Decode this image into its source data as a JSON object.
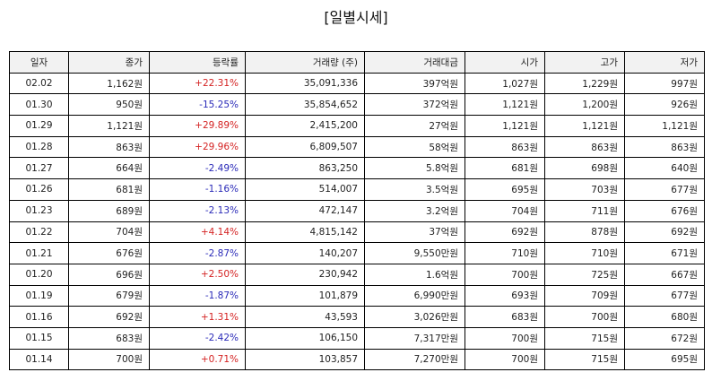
{
  "title": "[일별시세]",
  "columns": [
    "일자",
    "종가",
    "등락률",
    "거래량 (주)",
    "거래대금",
    "시가",
    "고가",
    "저가"
  ],
  "colors": {
    "up": "#d42222",
    "down": "#2a2ab8"
  },
  "rows": [
    {
      "date": "02.02",
      "close": "1,162원",
      "change": "+22.31%",
      "dir": "up",
      "volume": "35,091,336",
      "amount": "397억원",
      "open": "1,027원",
      "high": "1,229원",
      "low": "997원"
    },
    {
      "date": "01.30",
      "close": "950원",
      "change": "-15.25%",
      "dir": "down",
      "volume": "35,854,652",
      "amount": "372억원",
      "open": "1,121원",
      "high": "1,200원",
      "low": "926원"
    },
    {
      "date": "01.29",
      "close": "1,121원",
      "change": "+29.89%",
      "dir": "up",
      "volume": "2,415,200",
      "amount": "27억원",
      "open": "1,121원",
      "high": "1,121원",
      "low": "1,121원"
    },
    {
      "date": "01.28",
      "close": "863원",
      "change": "+29.96%",
      "dir": "up",
      "volume": "6,809,507",
      "amount": "58억원",
      "open": "863원",
      "high": "863원",
      "low": "863원"
    },
    {
      "date": "01.27",
      "close": "664원",
      "change": "-2.49%",
      "dir": "down",
      "volume": "863,250",
      "amount": "5.8억원",
      "open": "681원",
      "high": "698원",
      "low": "640원"
    },
    {
      "date": "01.26",
      "close": "681원",
      "change": "-1.16%",
      "dir": "down",
      "volume": "514,007",
      "amount": "3.5억원",
      "open": "695원",
      "high": "703원",
      "low": "677원"
    },
    {
      "date": "01.23",
      "close": "689원",
      "change": "-2.13%",
      "dir": "down",
      "volume": "472,147",
      "amount": "3.2억원",
      "open": "704원",
      "high": "711원",
      "low": "676원"
    },
    {
      "date": "01.22",
      "close": "704원",
      "change": "+4.14%",
      "dir": "up",
      "volume": "4,815,142",
      "amount": "37억원",
      "open": "692원",
      "high": "878원",
      "low": "692원"
    },
    {
      "date": "01.21",
      "close": "676원",
      "change": "-2.87%",
      "dir": "down",
      "volume": "140,207",
      "amount": "9,550만원",
      "open": "710원",
      "high": "710원",
      "low": "671원"
    },
    {
      "date": "01.20",
      "close": "696원",
      "change": "+2.50%",
      "dir": "up",
      "volume": "230,942",
      "amount": "1.6억원",
      "open": "700원",
      "high": "725원",
      "low": "667원"
    },
    {
      "date": "01.19",
      "close": "679원",
      "change": "-1.87%",
      "dir": "down",
      "volume": "101,879",
      "amount": "6,990만원",
      "open": "693원",
      "high": "709원",
      "low": "677원"
    },
    {
      "date": "01.16",
      "close": "692원",
      "change": "+1.31%",
      "dir": "up",
      "volume": "43,593",
      "amount": "3,026만원",
      "open": "683원",
      "high": "700원",
      "low": "680원"
    },
    {
      "date": "01.15",
      "close": "683원",
      "change": "-2.42%",
      "dir": "down",
      "volume": "106,150",
      "amount": "7,317만원",
      "open": "700원",
      "high": "715원",
      "low": "672원"
    },
    {
      "date": "01.14",
      "close": "700원",
      "change": "+0.71%",
      "dir": "up",
      "volume": "103,857",
      "amount": "7,270만원",
      "open": "700원",
      "high": "715원",
      "low": "695원"
    }
  ]
}
